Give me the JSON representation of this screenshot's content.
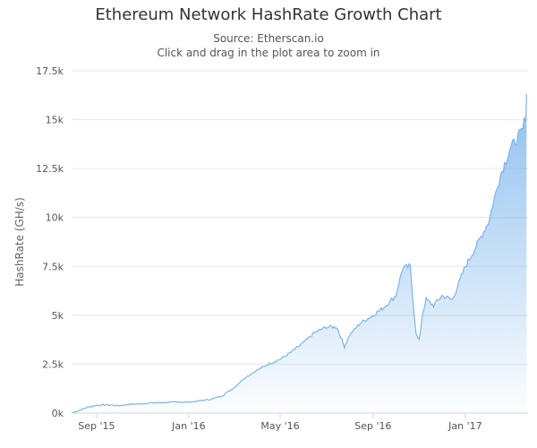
{
  "chart_data": {
    "type": "area",
    "title": "Ethereum Network HashRate Growth Chart",
    "subtitle": "Source: Etherscan.io",
    "subtitle2": "Click and drag in the plot area to zoom in",
    "ylabel": "HashRate (GH/s)",
    "xlabel": "",
    "ylim": [
      0,
      17500
    ],
    "xlim": [
      "2015-07-30",
      "2017-03-25"
    ],
    "yticks": [
      0,
      2500,
      5000,
      7500,
      10000,
      12500,
      15000,
      17500
    ],
    "ytick_labels": [
      "0k",
      "2.5k",
      "5k",
      "7.5k",
      "10k",
      "12.5k",
      "15k",
      "17.5k"
    ],
    "xticks": [
      "2015-09-01",
      "2016-01-01",
      "2016-05-01",
      "2016-09-01",
      "2017-01-01"
    ],
    "xtick_labels": [
      "Sep '15",
      "Jan '16",
      "May '16",
      "Sep '16",
      "Jan '17"
    ],
    "grid": true,
    "color": "#7cb5ec",
    "x": [
      "2015-07-30",
      "2015-08-10",
      "2015-08-20",
      "2015-09-01",
      "2015-09-15",
      "2015-10-01",
      "2015-10-15",
      "2015-11-01",
      "2015-11-15",
      "2015-12-01",
      "2015-12-15",
      "2016-01-01",
      "2016-01-15",
      "2016-02-01",
      "2016-02-15",
      "2016-03-01",
      "2016-03-15",
      "2016-04-01",
      "2016-04-15",
      "2016-05-01",
      "2016-05-15",
      "2016-06-01",
      "2016-06-15",
      "2016-07-01",
      "2016-07-15",
      "2016-07-25",
      "2016-08-01",
      "2016-08-15",
      "2016-09-01",
      "2016-09-15",
      "2016-10-01",
      "2016-10-10",
      "2016-10-20",
      "2016-10-25",
      "2016-10-28",
      "2016-11-01",
      "2016-11-05",
      "2016-11-10",
      "2016-11-20",
      "2016-12-01",
      "2016-12-15",
      "2017-01-01",
      "2017-01-15",
      "2017-02-01",
      "2017-02-15",
      "2017-03-01",
      "2017-03-10",
      "2017-03-18",
      "2017-03-22",
      "2017-03-23"
    ],
    "values": [
      0,
      150,
      300,
      400,
      420,
      380,
      450,
      480,
      520,
      540,
      560,
      560,
      620,
      720,
      900,
      1300,
      1800,
      2200,
      2500,
      2750,
      3100,
      3600,
      4100,
      4400,
      4400,
      3400,
      4000,
      4600,
      5000,
      5400,
      6000,
      7400,
      7500,
      5200,
      4000,
      3700,
      5000,
      5800,
      5500,
      6000,
      5800,
      7500,
      8500,
      9800,
      12000,
      13500,
      14000,
      14500,
      15200,
      16300
    ]
  }
}
